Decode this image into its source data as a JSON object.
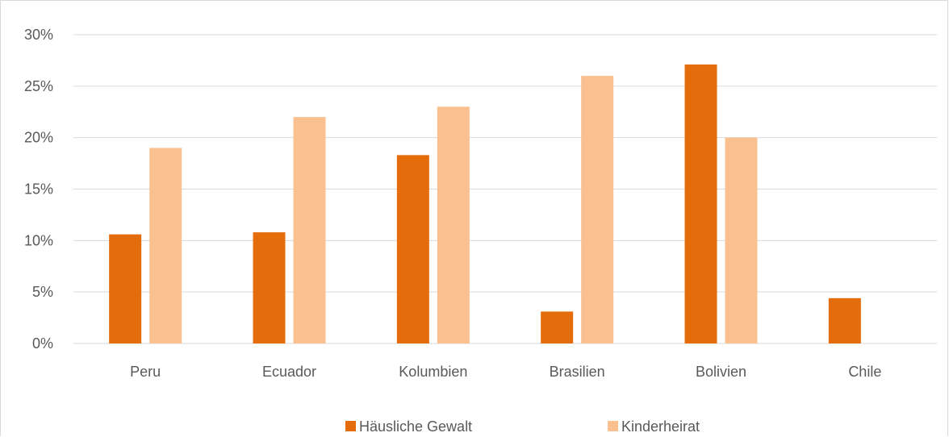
{
  "chart_data": {
    "type": "bar",
    "title": "",
    "xlabel": "",
    "ylabel": "",
    "categories": [
      "Peru",
      "Ecuador",
      "Kolumbien",
      "Brasilien",
      "Bolivien",
      "Chile"
    ],
    "series": [
      {
        "name": "Häusliche Gewalt",
        "color": "#e46c0a",
        "values": [
          10.6,
          10.8,
          18.3,
          3.1,
          27.1,
          4.4
        ]
      },
      {
        "name": "Kinderheirat",
        "color": "#fac090",
        "values": [
          19,
          22,
          23,
          26,
          20,
          null
        ]
      }
    ],
    "ylim": [
      0,
      30
    ],
    "y_ticks": [
      0,
      5,
      10,
      15,
      20,
      25,
      30
    ],
    "y_tick_labels": [
      "0%",
      "5%",
      "10%",
      "15%",
      "20%",
      "25%",
      "30%"
    ],
    "grid": true,
    "legend_position": "bottom"
  }
}
